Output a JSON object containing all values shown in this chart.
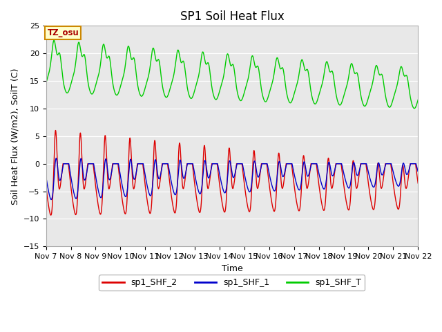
{
  "title": "SP1 Soil Heat Flux",
  "ylabel": "Soil Heat Flux (W/m2), SoilT (C)",
  "xlabel": "Time",
  "xlim_days": [
    7,
    22
  ],
  "ylim": [
    -15,
    25
  ],
  "yticks": [
    -15,
    -10,
    -5,
    0,
    5,
    10,
    15,
    20,
    25
  ],
  "xtick_labels": [
    "Nov 7",
    "Nov 8",
    "Nov 9",
    "Nov 10",
    "Nov 11",
    "Nov 12",
    "Nov 13",
    "Nov 14",
    "Nov 15",
    "Nov 16",
    "Nov 17",
    "Nov 18",
    "Nov 19",
    "Nov 20",
    "Nov 21",
    "Nov 22"
  ],
  "tz_label": "TZ_osu",
  "legend_entries": [
    "sp1_SHF_2",
    "sp1_SHF_1",
    "sp1_SHF_T"
  ],
  "line_colors": [
    "#dd0000",
    "#0000cc",
    "#00cc00"
  ],
  "background_color": "#e8e8e8",
  "title_fontsize": 12,
  "axis_label_fontsize": 9,
  "tick_fontsize": 8,
  "legend_fontsize": 9
}
